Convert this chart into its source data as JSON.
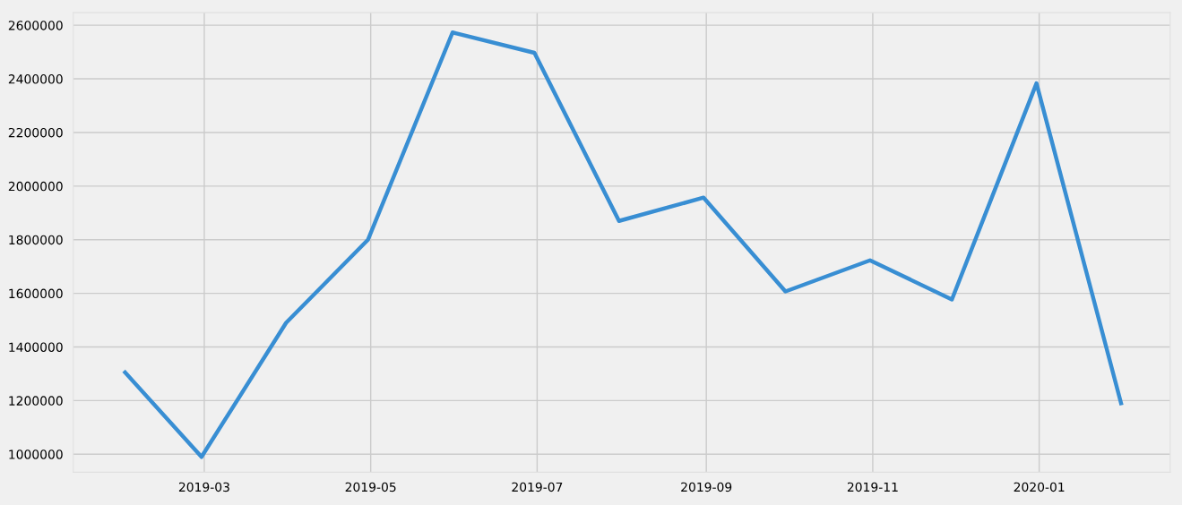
{
  "chart_data": {
    "type": "line",
    "x": [
      "2019-01-31",
      "2019-02-28",
      "2019-03-31",
      "2019-04-30",
      "2019-05-31",
      "2019-06-30",
      "2019-07-31",
      "2019-08-31",
      "2019-09-30",
      "2019-10-31",
      "2019-11-30",
      "2019-12-31",
      "2020-01-31"
    ],
    "series": [
      {
        "color": "#388ed3",
        "values": [
          1305000,
          990000,
          1490000,
          1800000,
          2573000,
          2497000,
          1870000,
          1957000,
          1607000,
          1723000,
          1577000,
          2383000,
          1190000
        ]
      }
    ],
    "xlim": [
      "2019-01-12",
      "2020-02-18"
    ],
    "xticks": [
      {
        "value": "2019-03-01",
        "label": "2019-03"
      },
      {
        "value": "2019-05-01",
        "label": "2019-05"
      },
      {
        "value": "2019-07-01",
        "label": "2019-07"
      },
      {
        "value": "2019-09-01",
        "label": "2019-09"
      },
      {
        "value": "2019-11-01",
        "label": "2019-11"
      },
      {
        "value": "2020-01-01",
        "label": "2020-01"
      }
    ],
    "ylim": [
      933000,
      2647000
    ],
    "yticks": [
      1000000,
      1200000,
      1400000,
      1600000,
      1800000,
      2000000,
      2200000,
      2400000,
      2600000
    ],
    "grid": true,
    "marker": "none",
    "line_style": "solid"
  }
}
